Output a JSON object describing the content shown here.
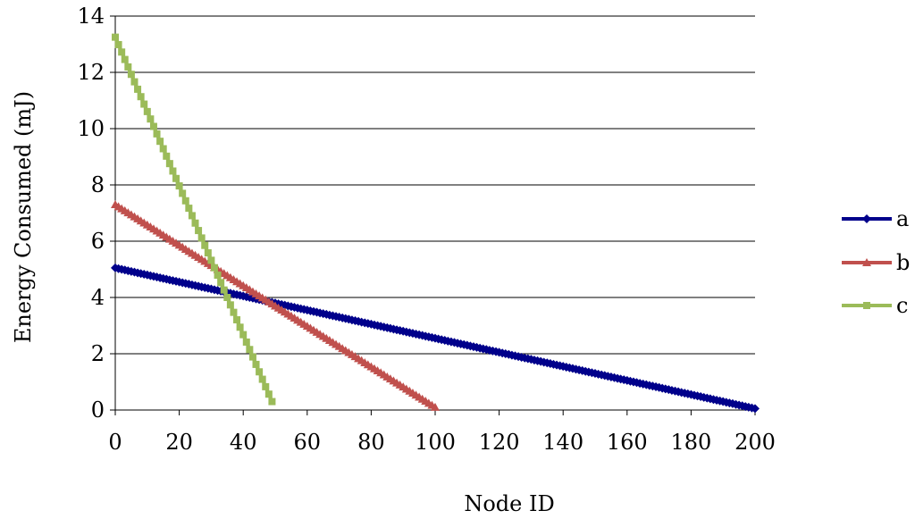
{
  "chart_data": {
    "type": "line",
    "title": "",
    "xlabel": "Node ID",
    "ylabel": "Energy Consumed (mJ)",
    "xlim": [
      0,
      200
    ],
    "ylim": [
      0,
      14
    ],
    "xticks": [
      0,
      20,
      40,
      60,
      80,
      100,
      120,
      140,
      160,
      180,
      200
    ],
    "yticks": [
      0,
      2,
      4,
      6,
      8,
      10,
      12,
      14
    ],
    "grid": "horizontal",
    "legend_position": "right",
    "series": [
      {
        "name": "a",
        "color": "#00008B",
        "marker": "diamond",
        "x_start": 0,
        "x_end": 200,
        "y_start": 5.05,
        "y_end": 0.05
      },
      {
        "name": "b",
        "color": "#C0504D",
        "marker": "triangle",
        "x_start": 0,
        "x_end": 100,
        "y_start": 7.3,
        "y_end": 0.1
      },
      {
        "name": "c",
        "color": "#9BBB59",
        "marker": "square",
        "x_start": 0,
        "x_end": 49,
        "y_start": 13.25,
        "y_end": 0.3
      }
    ]
  }
}
